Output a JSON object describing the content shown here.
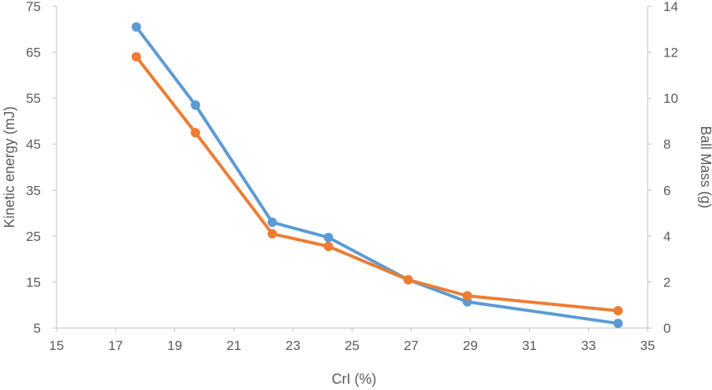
{
  "chart_data": {
    "type": "line",
    "title": "",
    "xlabel": "CrI (%)",
    "ylabel": "Kinetic energy (mJ)",
    "y2label": "Ball Mass (g)",
    "xlim": [
      15,
      35
    ],
    "ylim": [
      5,
      75
    ],
    "y2lim": [
      0,
      14
    ],
    "x_ticks": [
      "15",
      "17",
      "19",
      "21",
      "23",
      "25",
      "27",
      "29",
      "31",
      "33",
      "35"
    ],
    "y_ticks": [
      "5",
      "15",
      "25",
      "35",
      "45",
      "55",
      "65",
      "75"
    ],
    "y2_ticks": [
      "0",
      "2",
      "4",
      "6",
      "8",
      "10",
      "12",
      "14"
    ],
    "grid": false,
    "legend": "none",
    "series": [
      {
        "axis": "left",
        "color": "#5B9BD5",
        "x": [
          17.7,
          19.7,
          22.3,
          24.2,
          26.9,
          28.9,
          34.0
        ],
        "y": [
          70.5,
          53.5,
          28.0,
          24.7,
          15.5,
          10.7,
          6.0
        ]
      },
      {
        "axis": "right",
        "color": "#ED7D31",
        "x": [
          17.7,
          19.7,
          22.3,
          24.2,
          26.9,
          28.9,
          34.0
        ],
        "y": [
          11.8,
          8.5,
          4.1,
          3.55,
          2.1,
          1.4,
          0.75
        ]
      }
    ]
  }
}
